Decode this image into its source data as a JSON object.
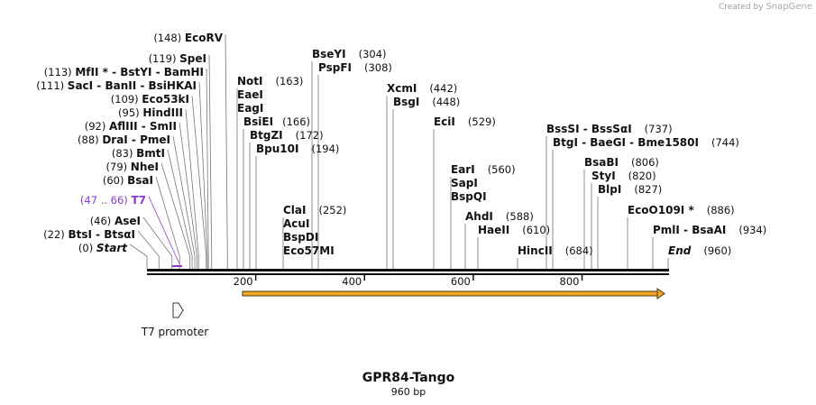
{
  "credit": {
    "prefix": "Created by",
    "brand": "SnapGene"
  },
  "title": "GPR84-Tango",
  "subtitle": "960 bp",
  "axis": {
    "length": 960,
    "ticks": [
      "200",
      "400",
      "600",
      "800"
    ]
  },
  "feature_orf": {
    "start": 201,
    "end": 960,
    "color": "#f0a020"
  },
  "promoter": {
    "label": "T7 promoter",
    "position": 56
  },
  "left_sites": [
    {
      "pos": "(148)",
      "name": "EcoRV",
      "bp": 148
    },
    {
      "pos": "(119)",
      "name": "SpeI",
      "bp": 119
    },
    {
      "pos": "(113)",
      "name": "MfII *  -  BstYI  -  BamHI",
      "bp": 113
    },
    {
      "pos": "(111)",
      "name": "SacI  -  BanII  -  BsiHKAI",
      "bp": 111
    },
    {
      "pos": "(109)",
      "name": "Eco53kI",
      "bp": 109
    },
    {
      "pos": "(95)",
      "name": "HindIII",
      "bp": 95
    },
    {
      "pos": "(92)",
      "name": "AflIII  -  SmII",
      "bp": 92
    },
    {
      "pos": "(88)",
      "name": "DraI  -  PmeI",
      "bp": 88
    },
    {
      "pos": "(83)",
      "name": "BmtI",
      "bp": 83
    },
    {
      "pos": "(79)",
      "name": "NheI",
      "bp": 79
    },
    {
      "pos": "(60)",
      "name": "BsaI",
      "bp": 60
    },
    {
      "pos": "(47 .. 66)",
      "name": "T7",
      "bp": 56,
      "purple": true
    },
    {
      "pos": "(46)",
      "name": "AseI",
      "bp": 46
    },
    {
      "pos": "(22)",
      "name": "BtsI  -  BtsαI",
      "bp": 22
    },
    {
      "pos": "(0)",
      "name": "Start",
      "bp": 0,
      "italic": true
    }
  ],
  "right_sites": [
    {
      "name": "NotI",
      "pos": "(163)",
      "bp": 163
    },
    {
      "name": "EaeI",
      "pos": "",
      "bp": 163
    },
    {
      "name": "EagI",
      "pos": "",
      "bp": 163
    },
    {
      "name": "BsiEI",
      "pos": "(166)",
      "bp": 166
    },
    {
      "name": "BtgZI",
      "pos": "(172)",
      "bp": 172
    },
    {
      "name": "Bpu10I",
      "pos": "(194)",
      "bp": 194
    },
    {
      "name": "BseYI",
      "pos": "(304)",
      "bp": 304
    },
    {
      "name": "PspFI",
      "pos": "(308)",
      "bp": 308
    },
    {
      "name": "ClaI",
      "pos": "(252)",
      "bp": 252
    },
    {
      "name": "AcuI",
      "pos": "",
      "bp": 252
    },
    {
      "name": "BspDI",
      "pos": "",
      "bp": 252
    },
    {
      "name": "Eco57MI",
      "pos": "",
      "bp": 252
    },
    {
      "name": "XcmI",
      "pos": "(442)",
      "bp": 442
    },
    {
      "name": "BsgI",
      "pos": "(448)",
      "bp": 448
    },
    {
      "name": "EciI",
      "pos": "(529)",
      "bp": 529
    },
    {
      "name": "EarI",
      "pos": "(560)",
      "bp": 560
    },
    {
      "name": "SapI",
      "pos": "",
      "bp": 560
    },
    {
      "name": "BspQI",
      "pos": "",
      "bp": 560
    },
    {
      "name": "AhdI",
      "pos": "(588)",
      "bp": 588
    },
    {
      "name": "HaeII",
      "pos": "(610)",
      "bp": 610
    },
    {
      "name": "HincII",
      "pos": "(684)",
      "bp": 684
    },
    {
      "name": "BssSI  -  BssSαI",
      "pos": "(737)",
      "bp": 737
    },
    {
      "name": "BtgI  -  BaeGI  -  Bme1580I",
      "pos": "(744)",
      "bp": 744
    },
    {
      "name": "BsaBI",
      "pos": "(806)",
      "bp": 806
    },
    {
      "name": "StyI",
      "pos": "(820)",
      "bp": 820
    },
    {
      "name": "BlpI",
      "pos": "(827)",
      "bp": 827
    },
    {
      "name": "EcoO109I *",
      "pos": "(886)",
      "bp": 886
    },
    {
      "name": "PmlI  -  BsaAI",
      "pos": "(934)",
      "bp": 934
    },
    {
      "name": "End",
      "pos": "(960)",
      "bp": 960,
      "italic": true
    }
  ]
}
